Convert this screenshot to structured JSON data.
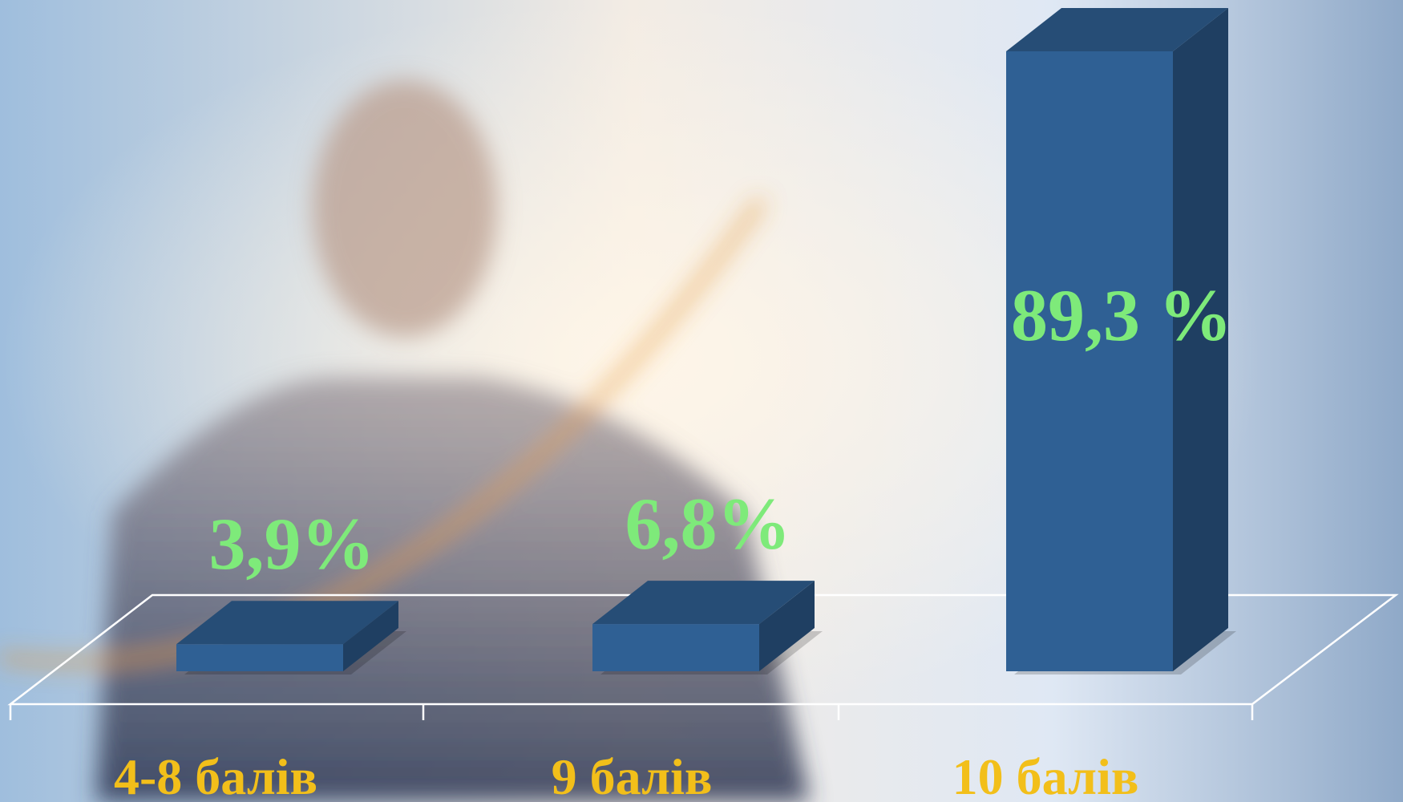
{
  "chart_data": {
    "type": "bar3d",
    "categories": [
      "4-8 балів",
      "9 балів",
      "10 балів"
    ],
    "values": [
      3.9,
      6.8,
      89.3
    ],
    "value_labels": [
      "3,9%",
      "6,8%",
      "89,3 %"
    ],
    "color": "#2f6094"
  }
}
